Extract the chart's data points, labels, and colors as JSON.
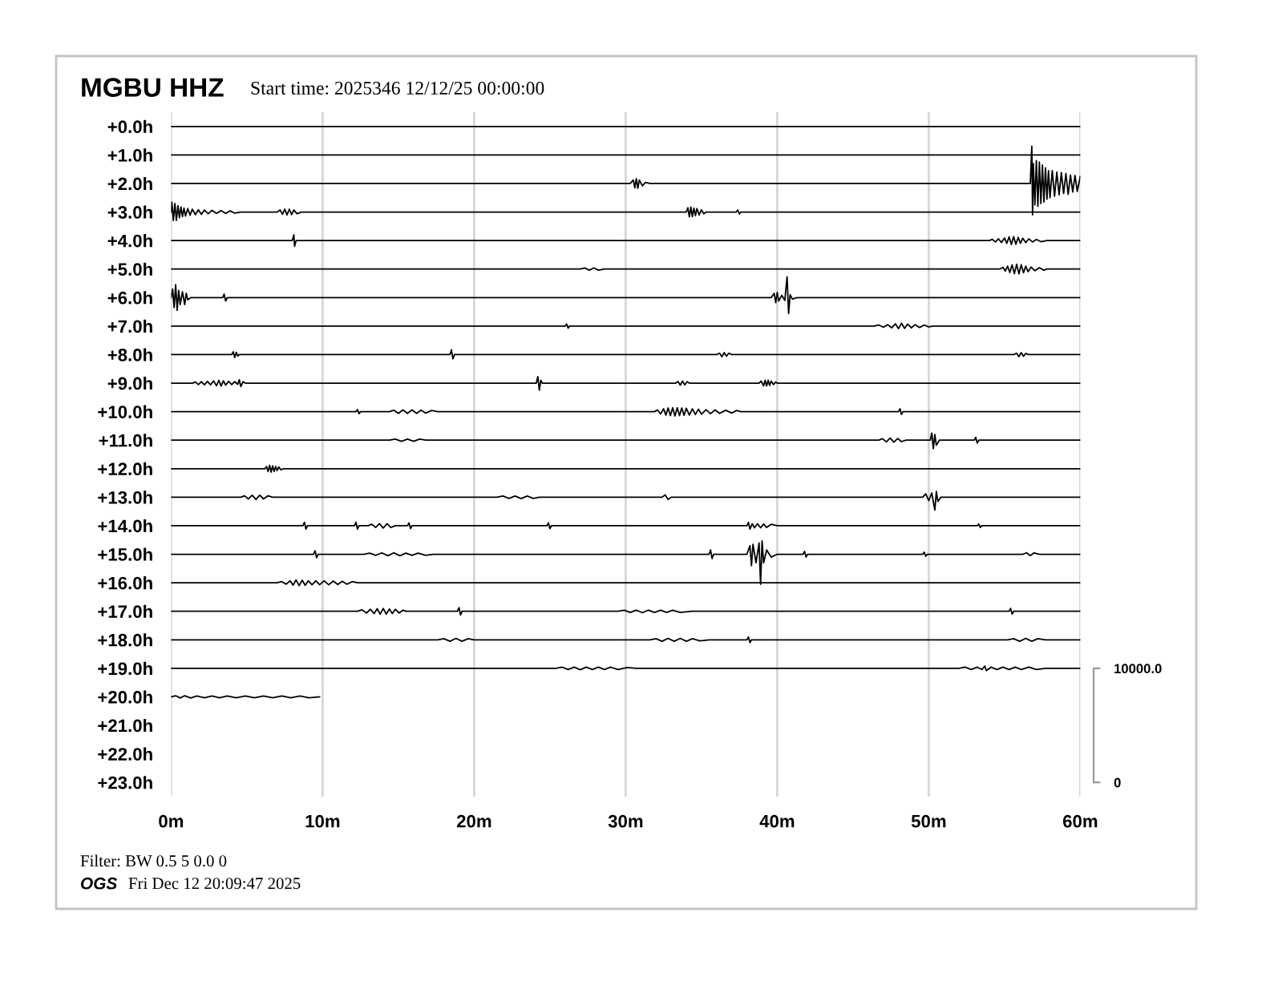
{
  "chart_data": {
    "type": "line",
    "title": "MGBU HHZ",
    "subtitle": "Start time: 2025346 12/12/25 00:00:00",
    "annotations": [
      "Filter: BW 0.5 5 0.0 0",
      "OGS",
      "Fri Dec 12 20:09:47 2025"
    ],
    "xlim": [
      0,
      60
    ],
    "xticks": [
      {
        "value": 0,
        "label": "0m"
      },
      {
        "value": 10,
        "label": "10m"
      },
      {
        "value": 20,
        "label": "20m"
      },
      {
        "value": 30,
        "label": "30m"
      },
      {
        "value": 40,
        "label": "40m"
      },
      {
        "value": 50,
        "label": "50m"
      },
      {
        "value": 60,
        "label": "60m"
      }
    ],
    "ylim": [
      23.5,
      -0.5
    ],
    "yticks": [
      {
        "value": 0,
        "label": "+0.0h"
      },
      {
        "value": 1,
        "label": "+1.0h"
      },
      {
        "value": 2,
        "label": "+2.0h"
      },
      {
        "value": 3,
        "label": "+3.0h"
      },
      {
        "value": 4,
        "label": "+4.0h"
      },
      {
        "value": 5,
        "label": "+5.0h"
      },
      {
        "value": 6,
        "label": "+6.0h"
      },
      {
        "value": 7,
        "label": "+7.0h"
      },
      {
        "value": 8,
        "label": "+8.0h"
      },
      {
        "value": 9,
        "label": "+9.0h"
      },
      {
        "value": 10,
        "label": "+10.0h"
      },
      {
        "value": 11,
        "label": "+11.0h"
      },
      {
        "value": 12,
        "label": "+12.0h"
      },
      {
        "value": 13,
        "label": "+13.0h"
      },
      {
        "value": 14,
        "label": "+14.0h"
      },
      {
        "value": 15,
        "label": "+15.0h"
      },
      {
        "value": 16,
        "label": "+16.0h"
      },
      {
        "value": 17,
        "label": "+17.0h"
      },
      {
        "value": 18,
        "label": "+18.0h"
      },
      {
        "value": 19,
        "label": "+19.0h"
      },
      {
        "value": 20,
        "label": "+20.0h"
      },
      {
        "value": 21,
        "label": "+21.0h"
      },
      {
        "value": 22,
        "label": "+22.0h"
      },
      {
        "value": 23,
        "label": "+23.0h"
      }
    ],
    "y2lim": [
      -1250,
      58750
    ],
    "y2ticks": [
      0,
      {
        "value": 10000,
        "label": "10000.0"
      }
    ],
    "grid": "x",
    "series": [
      {
        "color": "#000000",
        "x": [
          0,
          60
        ],
        "values": [
          0,
          0
        ]
      },
      {
        "color": "#000000",
        "x": [
          0,
          60
        ],
        "values": [
          1,
          1
        ]
      },
      {
        "color": "#000000",
        "x": [
          0,
          30.3,
          30.5,
          30.6,
          30.7,
          30.8,
          30.9,
          31.1,
          31.3,
          31.6,
          56.7,
          56.8,
          56.85,
          56.9,
          57.0,
          57.1,
          57.2,
          57.3,
          57.4,
          57.5,
          57.6,
          57.7,
          57.8,
          57.9,
          58.0,
          58.15,
          58.3,
          58.45,
          58.6,
          58.75,
          58.9,
          59.05,
          59.2,
          59.35,
          59.5,
          59.65,
          59.8,
          60
        ],
        "values": [
          2,
          2,
          1.88,
          2.15,
          1.83,
          2.17,
          1.88,
          2.08,
          1.96,
          2,
          2,
          0.69,
          3.1,
          1.3,
          2.75,
          1.2,
          2.8,
          1.25,
          2.7,
          1.35,
          2.65,
          1.45,
          2.55,
          1.55,
          2.5,
          1.55,
          2.45,
          1.6,
          2.4,
          1.62,
          2.35,
          1.65,
          2.38,
          1.7,
          2.3,
          1.72,
          2.28,
          1.75
        ]
      },
      {
        "color": "#000000",
        "x": [
          0,
          0.05,
          0.15,
          0.25,
          0.35,
          0.45,
          0.55,
          0.65,
          0.75,
          0.85,
          0.95,
          1.1,
          1.25,
          1.4,
          1.6,
          1.8,
          2.0,
          2.2,
          2.45,
          2.7,
          3.0,
          3.3,
          3.6,
          3.9,
          4.2,
          4.6,
          7.0,
          7.2,
          7.35,
          7.5,
          7.65,
          7.8,
          7.95,
          8.1,
          8.3,
          8.6,
          34.0,
          34.1,
          34.2,
          34.3,
          34.4,
          34.5,
          34.6,
          34.7,
          34.85,
          35.0,
          35.15,
          35.3,
          37.3,
          37.4,
          37.5,
          37.6,
          60
        ],
        "values": [
          3,
          2.65,
          3.3,
          2.7,
          3.3,
          2.78,
          3.2,
          2.82,
          3.16,
          2.86,
          3.14,
          2.88,
          3.11,
          2.9,
          3.09,
          2.92,
          3.08,
          2.93,
          3.06,
          2.94,
          3.05,
          2.95,
          3.05,
          2.96,
          3.04,
          3,
          3,
          2.93,
          3.08,
          2.9,
          3.1,
          2.9,
          3.09,
          2.93,
          3.06,
          3,
          3,
          2.85,
          3.17,
          2.83,
          3.16,
          2.86,
          3.13,
          2.88,
          3.1,
          2.92,
          3.06,
          3,
          3,
          2.93,
          3.07,
          3,
          3
        ]
      },
      {
        "color": "#000000",
        "x": [
          0,
          8.0,
          8.1,
          8.15,
          8.25,
          54.0,
          54.2,
          54.4,
          54.6,
          54.8,
          55.0,
          55.15,
          55.3,
          55.45,
          55.6,
          55.75,
          55.9,
          56.05,
          56.2,
          56.4,
          56.6,
          56.85,
          57.1,
          57.4,
          57.8,
          60
        ],
        "values": [
          4,
          4,
          3.8,
          4.2,
          4,
          4,
          3.96,
          4.05,
          3.94,
          4.07,
          3.91,
          4.1,
          3.87,
          4.14,
          3.86,
          4.13,
          3.89,
          4.1,
          3.92,
          4.07,
          3.94,
          4.05,
          3.96,
          4.04,
          4,
          4
        ]
      },
      {
        "color": "#000000",
        "x": [
          0,
          27.0,
          27.3,
          27.6,
          27.9,
          28.2,
          28.6,
          54.7,
          54.9,
          55.05,
          55.2,
          55.35,
          55.5,
          55.65,
          55.8,
          55.95,
          56.1,
          56.25,
          56.4,
          56.55,
          56.75,
          57.0,
          57.3,
          57.6,
          57.8,
          60
        ],
        "values": [
          5,
          5,
          4.96,
          5.04,
          4.96,
          5.04,
          5,
          5,
          4.94,
          5.07,
          4.9,
          5.12,
          4.85,
          5.16,
          4.83,
          5.17,
          4.85,
          5.13,
          4.9,
          5.09,
          4.93,
          5.06,
          4.95,
          5.04,
          5,
          5
        ]
      },
      {
        "color": "#000000",
        "x": [
          0,
          0.1,
          0.2,
          0.3,
          0.4,
          0.5,
          0.6,
          0.75,
          0.9,
          1.0,
          1.1,
          1.3,
          3.4,
          3.5,
          3.6,
          3.7,
          39.6,
          39.8,
          39.9,
          40.0,
          40.1,
          40.3,
          40.5,
          40.65,
          40.75,
          40.85,
          41.0,
          41.3,
          60
        ],
        "values": [
          6,
          5.7,
          6.35,
          5.55,
          6.45,
          5.75,
          6.25,
          5.8,
          6.25,
          5.85,
          6.08,
          6,
          6,
          5.88,
          6.12,
          6,
          6,
          5.85,
          6.18,
          5.82,
          6.12,
          5.92,
          6.1,
          5.27,
          6.56,
          5.9,
          6.05,
          6,
          6
        ]
      },
      {
        "color": "#000000",
        "x": [
          0,
          26.0,
          26.1,
          26.2,
          26.3,
          46.4,
          46.7,
          47.0,
          47.3,
          47.55,
          47.8,
          48.0,
          48.2,
          48.4,
          48.6,
          48.85,
          49.1,
          49.4,
          49.7,
          50.0,
          50.3,
          60
        ],
        "values": [
          7,
          7,
          6.93,
          7.07,
          7,
          7,
          6.96,
          7.04,
          6.95,
          7.06,
          6.92,
          7.09,
          6.9,
          7.08,
          6.93,
          7.06,
          6.95,
          7.05,
          6.96,
          7.03,
          7,
          7
        ]
      },
      {
        "color": "#000000",
        "x": [
          0,
          4.0,
          4.1,
          4.2,
          4.3,
          4.4,
          4.5,
          18.4,
          18.5,
          18.6,
          18.7,
          36.0,
          36.2,
          36.35,
          36.5,
          36.65,
          36.8,
          37.0,
          55.6,
          55.8,
          55.95,
          56.1,
          56.25,
          56.4,
          56.6,
          60
        ],
        "values": [
          8,
          8,
          7.9,
          8.1,
          7.92,
          8.05,
          8,
          8,
          7.83,
          8.15,
          8,
          8,
          7.95,
          8.07,
          7.93,
          8.06,
          7.95,
          8,
          8,
          7.95,
          8.07,
          7.93,
          8.06,
          7.96,
          8,
          8
        ]
      },
      {
        "color": "#000000",
        "x": [
          0,
          1.4,
          1.6,
          1.8,
          2.0,
          2.2,
          2.4,
          2.6,
          2.8,
          3.0,
          3.15,
          3.3,
          3.45,
          3.6,
          3.8,
          4.0,
          4.2,
          4.4,
          4.5,
          4.6,
          4.75,
          4.9,
          24.1,
          24.2,
          24.3,
          24.4,
          24.5,
          33.3,
          33.45,
          33.6,
          33.75,
          33.9,
          34.05,
          34.2,
          38.8,
          38.95,
          39.1,
          39.2,
          39.3,
          39.4,
          39.5,
          39.6,
          39.75,
          39.9,
          40.0,
          60
        ],
        "values": [
          9,
          9,
          8.96,
          9.05,
          8.95,
          9.06,
          8.94,
          9.06,
          8.92,
          9.09,
          8.9,
          9.1,
          8.92,
          9.07,
          8.94,
          9.05,
          8.95,
          9.04,
          8.88,
          9.12,
          8.95,
          9,
          9,
          8.77,
          9.25,
          8.9,
          9,
          9,
          8.94,
          9.07,
          8.93,
          9.06,
          8.95,
          9,
          9,
          8.93,
          9.1,
          8.9,
          9.1,
          8.9,
          9.08,
          8.93,
          9.05,
          8.96,
          9,
          9
        ]
      },
      {
        "color": "#000000",
        "x": [
          0,
          12.2,
          12.3,
          12.4,
          12.5,
          14.4,
          14.7,
          15.0,
          15.3,
          15.6,
          15.9,
          16.2,
          16.5,
          16.8,
          17.2,
          17.6,
          31.9,
          32.1,
          32.3,
          32.5,
          32.65,
          32.8,
          32.95,
          33.1,
          33.25,
          33.4,
          33.55,
          33.7,
          33.85,
          34.0,
          34.2,
          34.4,
          34.6,
          34.8,
          35.0,
          35.3,
          35.6,
          35.9,
          36.2,
          36.6,
          37.0,
          37.3,
          37.6,
          48.0,
          48.1,
          48.2,
          48.3,
          60
        ],
        "values": [
          10,
          10,
          9.93,
          10.07,
          10,
          10,
          9.95,
          10.06,
          9.94,
          10.06,
          9.94,
          10.06,
          9.95,
          10.05,
          9.96,
          10,
          10,
          9.94,
          10.08,
          9.9,
          10.12,
          9.87,
          10.14,
          9.86,
          10.15,
          9.86,
          10.14,
          9.87,
          10.13,
          9.88,
          10.12,
          9.9,
          10.1,
          9.91,
          10.09,
          9.93,
          10.07,
          9.94,
          10.06,
          9.95,
          10.05,
          9.96,
          10,
          10,
          9.9,
          10.1,
          10,
          10
        ]
      },
      {
        "color": "#000000",
        "x": [
          0,
          14.4,
          14.8,
          15.2,
          15.6,
          16.0,
          16.4,
          16.8,
          46.7,
          46.95,
          47.2,
          47.45,
          47.7,
          47.95,
          48.2,
          48.5,
          50.1,
          50.2,
          50.3,
          50.4,
          50.5,
          50.7,
          53.0,
          53.1,
          53.2,
          53.3,
          60
        ],
        "values": [
          11,
          11,
          10.96,
          11.04,
          10.96,
          11.04,
          10.96,
          11,
          11,
          10.95,
          11.06,
          10.93,
          11.07,
          10.94,
          11.05,
          11,
          11,
          10.75,
          11.3,
          10.8,
          11.18,
          11,
          11,
          10.9,
          11.1,
          11,
          11
        ]
      },
      {
        "color": "#000000",
        "x": [
          0,
          6.2,
          6.3,
          6.4,
          6.5,
          6.6,
          6.7,
          6.8,
          6.9,
          7.0,
          7.1,
          7.25,
          7.4,
          60
        ],
        "values": [
          12,
          12,
          11.92,
          12.1,
          11.88,
          12.12,
          11.9,
          12.1,
          11.92,
          12.07,
          11.94,
          12.04,
          12,
          12
        ]
      },
      {
        "color": "#000000",
        "x": [
          0,
          4.6,
          4.85,
          5.1,
          5.35,
          5.6,
          5.85,
          6.1,
          6.4,
          6.7,
          21.5,
          21.9,
          22.3,
          22.7,
          23.1,
          23.5,
          23.9,
          24.3,
          32.4,
          32.6,
          32.8,
          33.0,
          49.6,
          49.8,
          50.0,
          50.2,
          50.4,
          50.5,
          50.6,
          50.8,
          60
        ],
        "values": [
          13,
          13,
          12.95,
          13.06,
          12.93,
          13.08,
          12.93,
          13.06,
          12.95,
          13,
          13,
          12.96,
          13.04,
          12.96,
          13.05,
          12.96,
          13.04,
          13,
          13,
          12.92,
          13.08,
          13,
          13,
          12.88,
          13.12,
          12.85,
          13.45,
          12.8,
          13.15,
          13,
          13
        ]
      },
      {
        "color": "#000000",
        "x": [
          0,
          8.7,
          8.8,
          8.9,
          9.0,
          12.1,
          12.2,
          12.3,
          12.4,
          13.0,
          13.25,
          13.5,
          13.75,
          14.0,
          14.25,
          14.5,
          14.8,
          15.6,
          15.7,
          15.8,
          15.9,
          24.8,
          24.9,
          25.0,
          25.1,
          38.0,
          38.1,
          38.2,
          38.35,
          38.5,
          38.7,
          38.9,
          39.1,
          39.3,
          39.6,
          40.0,
          53.2,
          53.3,
          53.4,
          53.5,
          60
        ],
        "values": [
          14,
          14,
          13.88,
          14.12,
          14,
          14,
          13.88,
          14.12,
          14,
          14,
          13.95,
          14.06,
          13.93,
          14.08,
          13.93,
          14.06,
          14,
          14,
          13.9,
          14.1,
          14,
          14,
          13.9,
          14.1,
          14,
          14,
          13.88,
          14.12,
          13.93,
          14.07,
          13.93,
          14.07,
          13.94,
          14.06,
          13.95,
          14,
          14,
          13.94,
          14.06,
          14,
          14
        ]
      },
      {
        "color": "#000000",
        "x": [
          0,
          9.4,
          9.5,
          9.6,
          9.7,
          12.7,
          13.1,
          13.5,
          13.9,
          14.3,
          14.7,
          15.1,
          15.5,
          15.9,
          16.3,
          16.8,
          17.3,
          35.5,
          35.6,
          35.7,
          35.8,
          38.0,
          38.2,
          38.3,
          38.4,
          38.6,
          38.8,
          38.9,
          39.0,
          39.1,
          39.3,
          39.6,
          40.0,
          41.7,
          41.8,
          41.9,
          42.0,
          49.6,
          49.7,
          49.8,
          49.9,
          56.2,
          56.45,
          56.7,
          56.95,
          57.3,
          60
        ],
        "values": [
          15,
          15,
          14.88,
          15.12,
          15,
          15,
          14.96,
          15.04,
          14.95,
          15.05,
          14.95,
          15.05,
          14.96,
          15.04,
          14.96,
          15.04,
          15,
          15,
          14.85,
          15.15,
          15,
          15,
          14.7,
          15.4,
          14.65,
          15.3,
          14.6,
          16.05,
          14.53,
          15.3,
          14.85,
          15.1,
          15,
          15,
          14.9,
          15.1,
          15,
          15,
          14.93,
          15.07,
          15,
          15,
          14.95,
          15.05,
          14.95,
          15,
          15
        ]
      },
      {
        "color": "#000000",
        "x": [
          0,
          7.0,
          7.3,
          7.6,
          7.85,
          8.05,
          8.25,
          8.45,
          8.65,
          8.85,
          9.05,
          9.3,
          9.55,
          9.8,
          10.1,
          10.4,
          10.7,
          11.0,
          11.3,
          11.6,
          11.95,
          12.3,
          60
        ],
        "values": [
          16,
          16,
          15.96,
          16.05,
          15.93,
          16.08,
          15.9,
          16.1,
          15.91,
          16.09,
          15.93,
          16.07,
          15.93,
          16.07,
          15.93,
          16.07,
          15.94,
          16.06,
          15.95,
          16.05,
          15.96,
          16,
          16
        ]
      },
      {
        "color": "#000000",
        "x": [
          0,
          12.3,
          12.6,
          12.9,
          13.15,
          13.4,
          13.6,
          13.8,
          14.0,
          14.2,
          14.4,
          14.6,
          14.8,
          15.05,
          15.3,
          15.5,
          18.9,
          19.0,
          19.1,
          19.2,
          29.5,
          29.9,
          30.3,
          30.7,
          31.1,
          31.5,
          31.9,
          32.3,
          32.7,
          33.1,
          33.6,
          34.4,
          55.3,
          55.4,
          55.5,
          55.6,
          60
        ],
        "values": [
          17,
          17,
          16.95,
          17.06,
          16.93,
          17.08,
          16.91,
          17.1,
          16.9,
          17.1,
          16.92,
          17.08,
          16.93,
          17.06,
          16.96,
          17,
          17,
          16.87,
          17.13,
          17,
          17,
          16.96,
          17.04,
          16.96,
          17.05,
          16.96,
          17.04,
          16.96,
          17.04,
          16.96,
          17.04,
          17,
          17,
          16.9,
          17.1,
          17,
          17
        ]
      },
      {
        "color": "#000000",
        "x": [
          0,
          17.6,
          18.0,
          18.4,
          18.8,
          19.2,
          19.6,
          20.0,
          31.6,
          32.0,
          32.4,
          32.8,
          33.2,
          33.6,
          34.0,
          34.4,
          34.9,
          35.5,
          38.0,
          38.1,
          38.2,
          38.3,
          55.2,
          55.6,
          56.0,
          56.4,
          56.8,
          57.2,
          57.7,
          60
        ],
        "values": [
          18,
          18,
          17.96,
          18.05,
          17.95,
          18.05,
          17.96,
          18,
          18,
          17.96,
          18.05,
          17.95,
          18.05,
          17.95,
          18.05,
          17.96,
          18.04,
          18,
          18,
          17.9,
          18.1,
          18,
          18,
          17.96,
          18.05,
          17.95,
          18.05,
          17.96,
          18,
          18
        ]
      },
      {
        "color": "#000000",
        "x": [
          0,
          25.4,
          25.8,
          26.2,
          26.6,
          27.0,
          27.4,
          27.8,
          28.2,
          28.6,
          29.0,
          29.5,
          30.1,
          30.7,
          52.0,
          52.4,
          52.8,
          53.2,
          53.5,
          53.7,
          53.8,
          54.1,
          54.5,
          54.9,
          55.3,
          55.7,
          56.1,
          56.6,
          57.1,
          57.7,
          60
        ],
        "values": [
          19,
          19,
          18.96,
          19.04,
          18.96,
          19.05,
          18.96,
          19.04,
          18.96,
          19.04,
          18.96,
          19.04,
          18.97,
          19,
          19,
          18.96,
          19.04,
          18.96,
          19.04,
          18.92,
          19.08,
          18.96,
          19.04,
          18.96,
          19.04,
          18.96,
          19.04,
          18.96,
          19.04,
          19,
          19
        ]
      },
      {
        "color": "#000000",
        "x": [
          0,
          0.3,
          0.6,
          0.9,
          1.3,
          1.7,
          2.2,
          2.7,
          3.2,
          3.7,
          4.3,
          4.9,
          5.5,
          6.1,
          6.7,
          7.3,
          7.9,
          8.5,
          9.1,
          9.8
        ],
        "values": [
          20,
          19.96,
          20.04,
          19.96,
          20.04,
          19.97,
          20.03,
          19.97,
          20.03,
          19.97,
          20.03,
          19.97,
          20.03,
          19.97,
          20.03,
          19.97,
          20.03,
          19.97,
          20.03,
          20
        ]
      }
    ]
  }
}
